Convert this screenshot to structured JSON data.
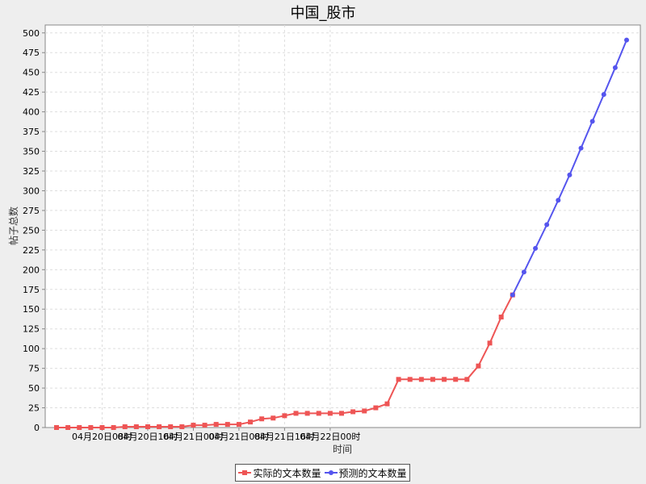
{
  "chart_data": {
    "type": "line",
    "title": "中国_股市",
    "xlabel": "时间",
    "ylabel": "帖子总数",
    "ylim": [
      0,
      510
    ],
    "yticks": [
      0,
      25,
      50,
      75,
      100,
      125,
      150,
      175,
      200,
      225,
      250,
      275,
      300,
      325,
      350,
      375,
      400,
      425,
      450,
      475,
      500
    ],
    "grid": true,
    "legend_position": "bottom-center",
    "x_start": "04月20日00时",
    "x_step_hours": 2,
    "x_tick_labels": [
      {
        "label": "04月20日08时",
        "x_hours": 8
      },
      {
        "label": "04月20日16时",
        "x_hours": 16
      },
      {
        "label": "04月21日00时",
        "x_hours": 24
      },
      {
        "label": "04月21日08时",
        "x_hours": 32
      },
      {
        "label": "04月21日16时",
        "x_hours": 40
      },
      {
        "label": "04月22日00时",
        "x_hours": 48
      }
    ],
    "series": [
      {
        "name": "实际的文本数量",
        "color": "#ee5555",
        "marker": "square",
        "x_first_hours": 0,
        "values": [
          0,
          0,
          0,
          0,
          0,
          0,
          1,
          1,
          1,
          1,
          1,
          1,
          3,
          3,
          4,
          4,
          4,
          7,
          11,
          12,
          15,
          18,
          18,
          18,
          18,
          18,
          20,
          21,
          25,
          30,
          61,
          61,
          61,
          61,
          61,
          61,
          61,
          78,
          107,
          140,
          168
        ]
      },
      {
        "name": "预测的文本数量",
        "color": "#5555ee",
        "marker": "circle",
        "x_first_hours": 80,
        "values": [
          168,
          197,
          227,
          257,
          288,
          320,
          354,
          388,
          422,
          456,
          491
        ]
      }
    ]
  }
}
